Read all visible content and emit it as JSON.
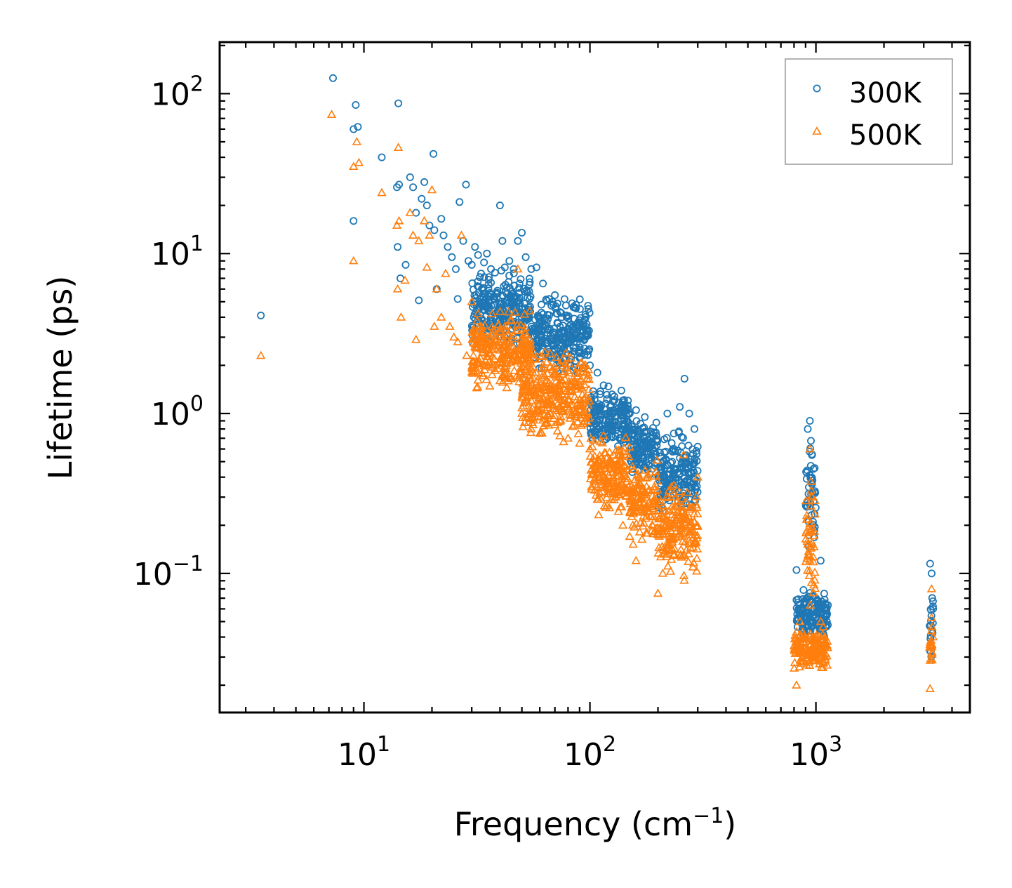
{
  "chart_data": {
    "type": "scatter",
    "title": "",
    "xlabel": "Frequency (cm",
    "xlabel_sup": "−1",
    "xlabel_close": ")",
    "ylabel": "Lifetime (ps)",
    "xscale": "log",
    "yscale": "log",
    "xlim": [
      2.3,
      4800
    ],
    "ylim": [
      0.0135,
      210
    ],
    "x_ticks": [
      {
        "value": 10,
        "base": "10",
        "exp": "1"
      },
      {
        "value": 100,
        "base": "10",
        "exp": "2"
      },
      {
        "value": 1000,
        "base": "10",
        "exp": "3"
      }
    ],
    "y_ticks": [
      {
        "value": 0.1,
        "base": "10",
        "exp": "−1"
      },
      {
        "value": 1,
        "base": "10",
        "exp": "0"
      },
      {
        "value": 10,
        "base": "10",
        "exp": "1"
      },
      {
        "value": 100,
        "base": "10",
        "exp": "2"
      }
    ],
    "legend_position": "top-right",
    "series": [
      {
        "name": "300K",
        "marker": "circle",
        "color": "#1f77b4",
        "points": [
          [
            3.5,
            4.1
          ],
          [
            7.3,
            125
          ],
          [
            9.2,
            85
          ],
          [
            9.0,
            60
          ],
          [
            9.4,
            62
          ],
          [
            9.0,
            16
          ],
          [
            12.0,
            40
          ],
          [
            14.2,
            87
          ],
          [
            14.0,
            26
          ],
          [
            14.3,
            27
          ],
          [
            14.1,
            11
          ],
          [
            14.5,
            7.0
          ],
          [
            15.3,
            8.5
          ],
          [
            16.0,
            30
          ],
          [
            16.5,
            26
          ],
          [
            17.0,
            18
          ],
          [
            17.5,
            5.1
          ],
          [
            18.0,
            22
          ],
          [
            18.5,
            28
          ],
          [
            19.0,
            20
          ],
          [
            19.5,
            15
          ],
          [
            20.3,
            42
          ],
          [
            20.5,
            14
          ],
          [
            21.0,
            6.0
          ],
          [
            22.0,
            16.5
          ],
          [
            22.5,
            13
          ],
          [
            23.5,
            11
          ],
          [
            24.5,
            9.5
          ],
          [
            25.5,
            8.0
          ],
          [
            26.0,
            5.2
          ],
          [
            26.5,
            21
          ],
          [
            27.5,
            12
          ],
          [
            28.3,
            27
          ],
          [
            29.0,
            9.0
          ],
          [
            30.0,
            8.5
          ],
          [
            31.0,
            11
          ],
          [
            32.0,
            9.8
          ],
          [
            33.0,
            7.5
          ],
          [
            34.0,
            8.8
          ],
          [
            35.0,
            10
          ],
          [
            36.5,
            8.0
          ],
          [
            38.0,
            7.6
          ],
          [
            40.0,
            20
          ],
          [
            41.0,
            12
          ],
          [
            42.0,
            8.2
          ],
          [
            44.0,
            9.0
          ],
          [
            46.0,
            8.0
          ],
          [
            48.0,
            12
          ],
          [
            50.0,
            13.5
          ],
          [
            52.0,
            9.5
          ],
          [
            55.0,
            8.0
          ],
          [
            58.0,
            8.2
          ],
          [
            62.0,
            6.5
          ],
          [
            66.0,
            5.2
          ],
          [
            70.0,
            5.5
          ],
          [
            75.0,
            4.0
          ],
          [
            80.0,
            3.2
          ],
          [
            85.0,
            2.8
          ],
          [
            90.0,
            2.5
          ],
          [
            96.0,
            3.5
          ],
          [
            100,
            2.0
          ],
          [
            108,
            1.8
          ],
          [
            115,
            1.5
          ],
          [
            125,
            0.8
          ],
          [
            135,
            0.7
          ],
          [
            150,
            1.0
          ],
          [
            160,
            1.05
          ],
          [
            175,
            0.95
          ],
          [
            190,
            0.6
          ],
          [
            205,
            0.45
          ],
          [
            220,
            1.0
          ],
          [
            235,
            0.75
          ],
          [
            250,
            1.1
          ],
          [
            262,
            1.65
          ],
          [
            275,
            1.0
          ],
          [
            290,
            0.8
          ],
          [
            300,
            0.62
          ],
          [
            820,
            0.105
          ],
          [
            850,
            0.06
          ],
          [
            880,
            0.04
          ],
          [
            920,
            0.8
          ],
          [
            940,
            0.9
          ],
          [
            960,
            0.55
          ],
          [
            1000,
            0.07
          ],
          [
            1050,
            0.12
          ],
          [
            1100,
            0.065
          ],
          [
            3200,
            0.115
          ],
          [
            3250,
            0.1
          ],
          [
            3300,
            0.06
          ]
        ],
        "bands": [
          {
            "x": [
              30,
              55
            ],
            "y": [
              2.2,
              9
            ]
          },
          {
            "x": [
              55,
              100
            ],
            "y": [
              1.6,
              6
            ]
          },
          {
            "x": [
              100,
              150
            ],
            "y": [
              0.5,
              1.6
            ]
          },
          {
            "x": [
              150,
              200
            ],
            "y": [
              0.35,
              1.05
            ]
          },
          {
            "x": [
              200,
              300
            ],
            "y": [
              0.2,
              0.85
            ]
          },
          {
            "x": [
              820,
              1130
            ],
            "y": [
              0.035,
              0.09
            ]
          },
          {
            "x": [
              900,
              1000
            ],
            "y": [
              0.1,
              0.9
            ]
          },
          {
            "x": [
              3180,
              3300
            ],
            "y": [
              0.02,
              0.11
            ]
          }
        ]
      },
      {
        "name": "500K",
        "marker": "triangle",
        "color": "#ff7f0e",
        "points": [
          [
            3.5,
            2.3
          ],
          [
            7.2,
            74
          ],
          [
            9.0,
            35
          ],
          [
            9.3,
            50
          ],
          [
            9.5,
            37
          ],
          [
            9.0,
            9.0
          ],
          [
            12.0,
            24
          ],
          [
            14.2,
            46
          ],
          [
            14.0,
            15
          ],
          [
            14.3,
            16
          ],
          [
            14.1,
            6.0
          ],
          [
            14.6,
            4.0
          ],
          [
            15.2,
            6.8
          ],
          [
            16.0,
            18
          ],
          [
            16.5,
            13
          ],
          [
            17.0,
            2.9
          ],
          [
            17.5,
            12
          ],
          [
            18.5,
            16
          ],
          [
            19.0,
            8.2
          ],
          [
            19.5,
            13
          ],
          [
            20.0,
            25
          ],
          [
            20.5,
            3.5
          ],
          [
            21.0,
            6.0
          ],
          [
            22.0,
            4.0
          ],
          [
            23.0,
            7.5
          ],
          [
            24.0,
            3.5
          ],
          [
            25.0,
            3.0
          ],
          [
            26.0,
            2.8
          ],
          [
            27.0,
            13
          ],
          [
            28.5,
            2.3
          ],
          [
            30,
            5.0
          ],
          [
            32,
            4.2
          ],
          [
            34,
            3.0
          ],
          [
            36,
            2.4
          ],
          [
            38,
            2.0
          ],
          [
            40,
            1.6
          ],
          [
            42,
            2.8
          ],
          [
            45,
            3.8
          ],
          [
            48,
            8.0
          ],
          [
            50,
            1.0
          ],
          [
            55,
            0.8
          ],
          [
            60,
            0.75
          ],
          [
            70,
            0.85
          ],
          [
            80,
            0.7
          ],
          [
            90,
            0.65
          ],
          [
            96,
            1.8
          ],
          [
            100,
            0.6
          ],
          [
            110,
            0.45
          ],
          [
            120,
            0.35
          ],
          [
            130,
            0.3
          ],
          [
            140,
            0.2
          ],
          [
            150,
            0.17
          ],
          [
            160,
            0.12
          ],
          [
            170,
            0.25
          ],
          [
            180,
            0.4
          ],
          [
            200,
            0.075
          ],
          [
            210,
            0.1
          ],
          [
            220,
            0.15
          ],
          [
            240,
            0.3
          ],
          [
            260,
            0.55
          ],
          [
            280,
            0.2
          ],
          [
            300,
            0.4
          ],
          [
            820,
            0.02
          ],
          [
            850,
            0.05
          ],
          [
            900,
            0.04
          ],
          [
            940,
            0.6
          ],
          [
            960,
            0.3
          ],
          [
            1000,
            0.04
          ],
          [
            1050,
            0.05
          ],
          [
            1100,
            0.03
          ],
          [
            3200,
            0.019
          ],
          [
            3250,
            0.08
          ],
          [
            3300,
            0.04
          ]
        ],
        "bands": [
          {
            "x": [
              30,
              55
            ],
            "y": [
              1.2,
              5
            ]
          },
          {
            "x": [
              50,
              100
            ],
            "y": [
              0.6,
              3
            ]
          },
          {
            "x": [
              100,
              150
            ],
            "y": [
              0.2,
              0.8
            ]
          },
          {
            "x": [
              150,
              200
            ],
            "y": [
              0.13,
              0.6
            ]
          },
          {
            "x": [
              200,
              300
            ],
            "y": [
              0.08,
              0.45
            ]
          },
          {
            "x": [
              800,
              1130
            ],
            "y": [
              0.022,
              0.05
            ]
          },
          {
            "x": [
              900,
              1000
            ],
            "y": [
              0.05,
              0.6
            ]
          },
          {
            "x": [
              3180,
              3300
            ],
            "y": [
              0.02,
              0.07
            ]
          }
        ]
      }
    ]
  }
}
